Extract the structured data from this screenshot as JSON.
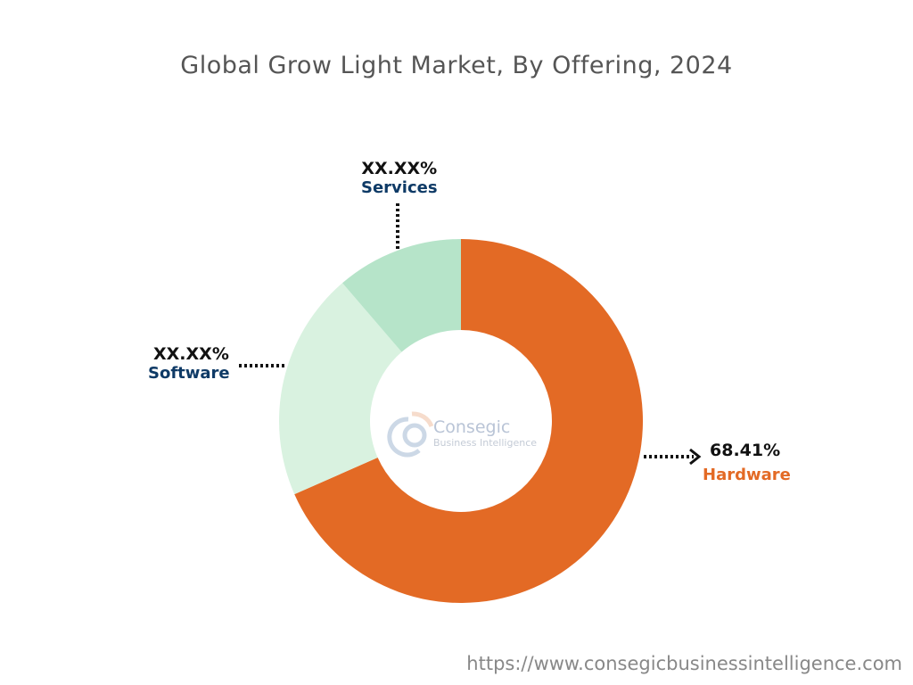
{
  "chart_data": {
    "type": "pie",
    "subtype": "donut",
    "title": "Global Grow Light Market, By Offering, 2024",
    "slices": [
      {
        "name": "Hardware",
        "value": 68.41,
        "label": "68.41%",
        "color": "#E36A25",
        "label_color": "#E36A25"
      },
      {
        "name": "Software",
        "value": 20.29,
        "label": "XX.XX%",
        "color": "#D9F2E0",
        "label_color": "#0E3A66"
      },
      {
        "name": "Services",
        "value": 11.3,
        "label": "XX.XX%",
        "color": "#B6E4C9",
        "label_color": "#0E3A66"
      }
    ],
    "legend": "none",
    "start": "top, clockwise"
  },
  "logo": {
    "name": "Consegic",
    "sub": "Business Intelligence"
  },
  "footer": "https://www.consegicbusinessintelligence.com"
}
